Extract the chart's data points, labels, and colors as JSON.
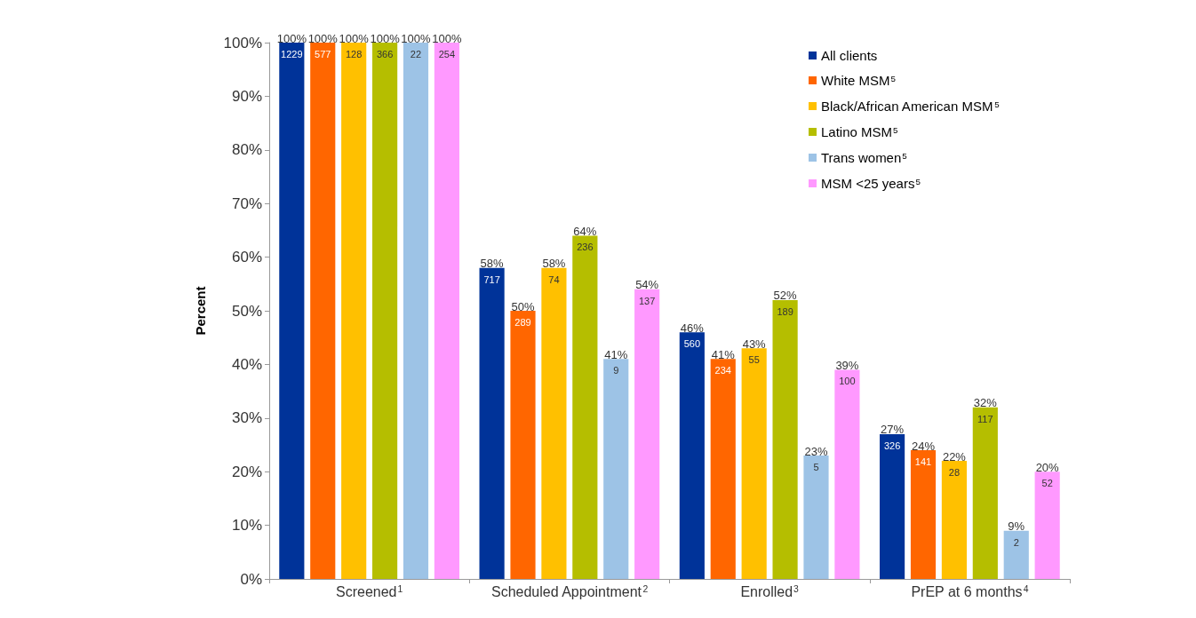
{
  "chart_data": {
    "type": "bar",
    "ylabel": "Percent",
    "categories": [
      "Screened$^{1}$",
      "Scheduled Appointment$^{2}$",
      "Enrolled$^{3}$",
      "PrEP at 6 months$^{4}$"
    ],
    "series": [
      {
        "name": "All clients",
        "color": "#003399",
        "values": [
          100,
          58,
          46,
          27
        ],
        "value_labels": [
          "100%",
          "58%",
          "46%",
          "27%"
        ]
      },
      {
        "name": "White MSM$^{5}$",
        "color": "#ff6600",
        "values": [
          100,
          50,
          41,
          24
        ],
        "value_labels": [
          "100%",
          "50%",
          "41%",
          "24%"
        ]
      },
      {
        "name": "Black/African American MSM$^{5}$",
        "color": "#ffc000",
        "values": [
          100,
          58,
          43,
          22
        ],
        "value_labels": [
          "100%",
          "58%",
          "43%",
          "22%"
        ]
      },
      {
        "name": "Latino MSM$^{5}$",
        "color": "#b5be00",
        "values": [
          100,
          64,
          52,
          32
        ],
        "value_labels": [
          "100%",
          "64%",
          "52%",
          "32%"
        ]
      },
      {
        "name": "Trans women$^{5}$",
        "color": "#9dc3e6",
        "values": [
          100,
          41,
          23,
          9
        ],
        "value_labels": [
          "100%",
          "41%",
          "23%",
          "9%"
        ]
      },
      {
        "name": "MSM <25 years$^{5}$",
        "color": "#ff99ff",
        "values": [
          100,
          54,
          39,
          20
        ],
        "value_labels": [
          "100%",
          "54%",
          "39%",
          "20%"
        ]
      }
    ],
    "annotations": [
      "1229",
      "717",
      "560",
      "326",
      "577",
      "289",
      "234",
      "141",
      "128",
      "74",
      "55",
      "28",
      "366",
      "236",
      "189",
      "117",
      "22",
      "9",
      "5",
      "2",
      "254",
      "137",
      "100",
      "52"
    ],
    "ylim": [
      0,
      100
    ],
    "yticks": [
      {
        "value": 0,
        "label": "0%"
      },
      {
        "value": 10,
        "label": "10%"
      },
      {
        "value": 20,
        "label": "20%"
      },
      {
        "value": 30,
        "label": "30%"
      },
      {
        "value": 40,
        "label": "40%"
      },
      {
        "value": 50,
        "label": "50%"
      },
      {
        "value": 60,
        "label": "60%"
      },
      {
        "value": 70,
        "label": "70%"
      },
      {
        "value": 80,
        "label": "80%"
      },
      {
        "value": 90,
        "label": "90%"
      },
      {
        "value": 100,
        "label": "100%"
      }
    ],
    "grid": false,
    "legend": "top right"
  }
}
